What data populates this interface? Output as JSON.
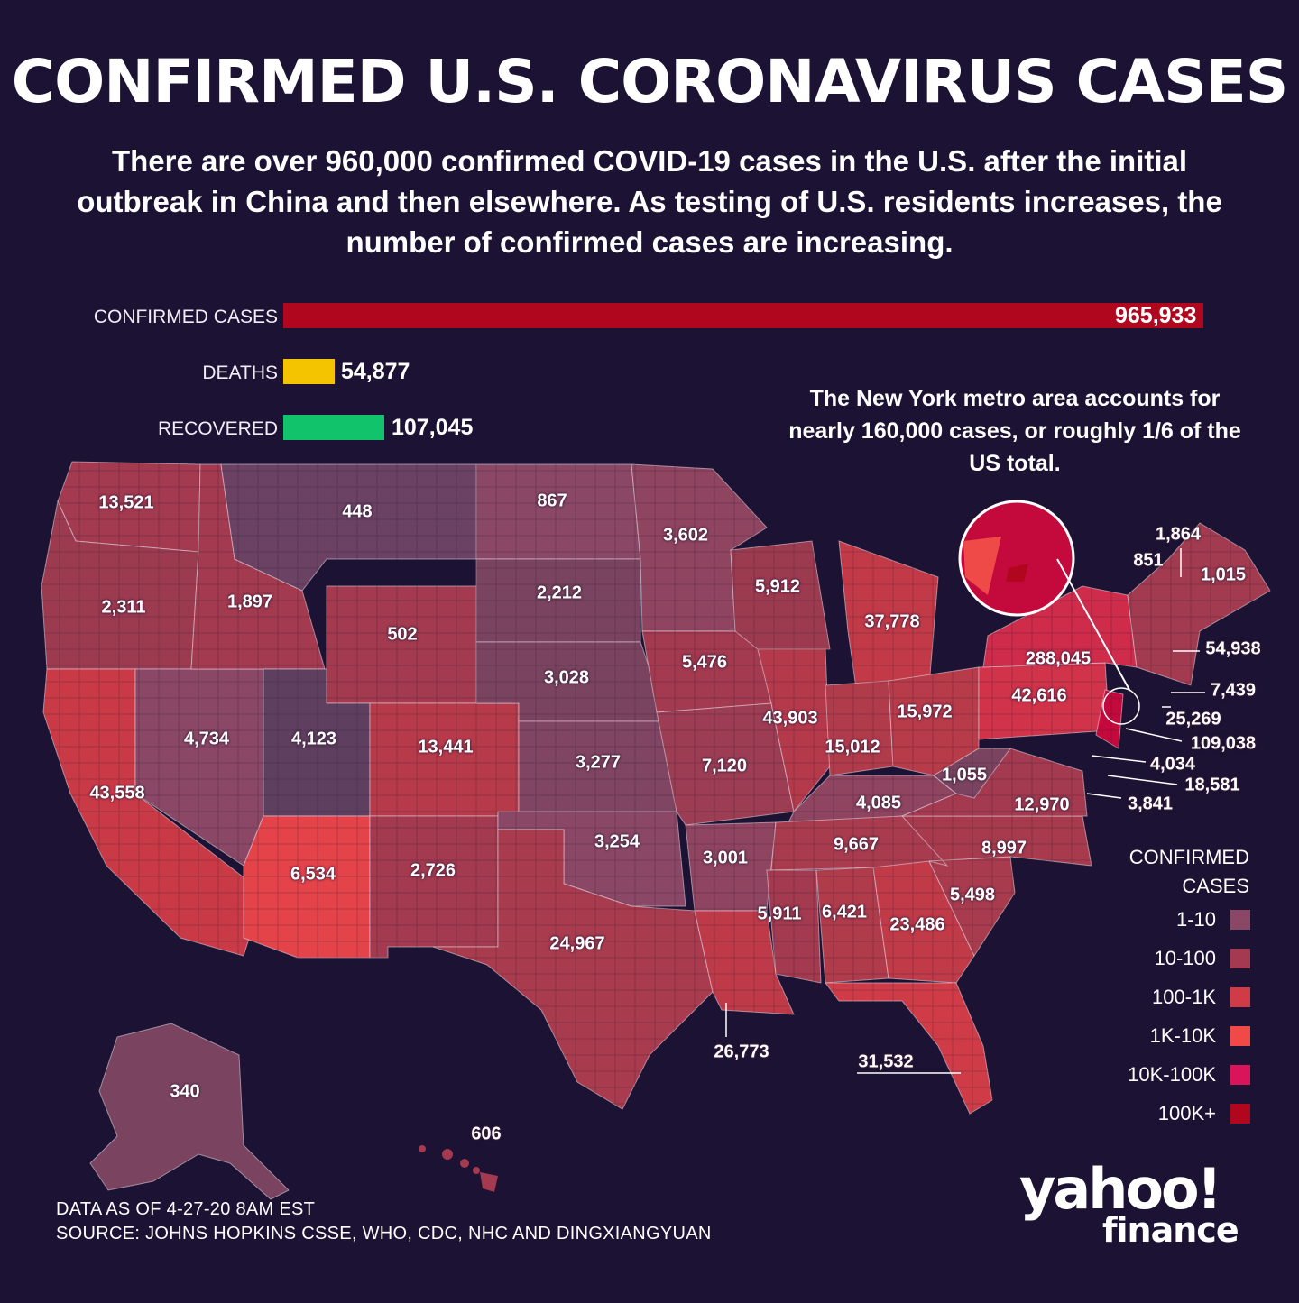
{
  "title": "CONFIRMED U.S. CORONAVIRUS CASES",
  "subtitle": "There are over 960,000 confirmed COVID-19 cases in the U.S. after the initial outbreak in China and then elsewhere. As testing of U.S. residents increases, the number of confirmed cases are increasing.",
  "totals": {
    "confirmed_label": "CONFIRMED CASES",
    "confirmed_value": "965,933",
    "deaths_label": "DEATHS",
    "deaths_value": "54,877",
    "recovered_label": "RECOVERED",
    "recovered_value": "107,045",
    "confirmed_color": "#b0071e",
    "deaths_color": "#f5c400",
    "recovered_color": "#11c46b"
  },
  "annotation": "The New York metro area accounts for nearly 160,000 cases, or roughly 1/6 of the US total.",
  "state_labels": {
    "WA": "13,521",
    "MT": "448",
    "ND": "867",
    "MN": "3,602",
    "ME_top": "1,864",
    "VT": "851",
    "ME": "1,015",
    "OR": "2,311",
    "ID": "1,897",
    "SD": "2,212",
    "WI": "5,912",
    "WY": "502",
    "MI": "37,778",
    "NY": "288,045",
    "MA": "54,938",
    "RI": "7,439",
    "NE": "3,028",
    "IA": "5,476",
    "PA": "42,616",
    "CT": "25,269",
    "NV": "4,734",
    "UT": "4,123",
    "CO": "13,441",
    "IL": "43,903",
    "OH": "15,972",
    "NJ": "109,038",
    "IN": "15,012",
    "DE": "4,034",
    "KS": "3,277",
    "MO": "7,120",
    "WV": "1,055",
    "MD": "18,581",
    "CA": "43,558",
    "KY": "4,085",
    "VA": "12,970",
    "DC": "3,841",
    "OK": "3,254",
    "TN": "9,667",
    "NC": "8,997",
    "AR": "3,001",
    "AZ": "6,534",
    "NM": "2,726",
    "MS": "5,911",
    "AL": "6,421",
    "GA": "23,486",
    "SC": "5,498",
    "TX": "24,967",
    "LA": "26,773",
    "FL": "31,532",
    "AK": "340",
    "HI": "606"
  },
  "legend": {
    "title": "CONFIRMED CASES",
    "items": [
      {
        "label": "1-10",
        "color": "#8a4866"
      },
      {
        "label": "10-100",
        "color": "#a33a4f"
      },
      {
        "label": "100-1K",
        "color": "#cf3c47"
      },
      {
        "label": "1K-10K",
        "color": "#ef4a48"
      },
      {
        "label": "10K-100K",
        "color": "#d9145a"
      },
      {
        "label": "100K+",
        "color": "#b0071e"
      }
    ]
  },
  "footer": {
    "data_as_of": "DATA AS OF 4-27-20 8AM  EST",
    "source": "SOURCE:  JOHNS HOPKINS CSSE, WHO, CDC, NHC AND DINGXIANGYUAN"
  },
  "logo": {
    "line1": "yahoo!",
    "line2": "finance"
  }
}
